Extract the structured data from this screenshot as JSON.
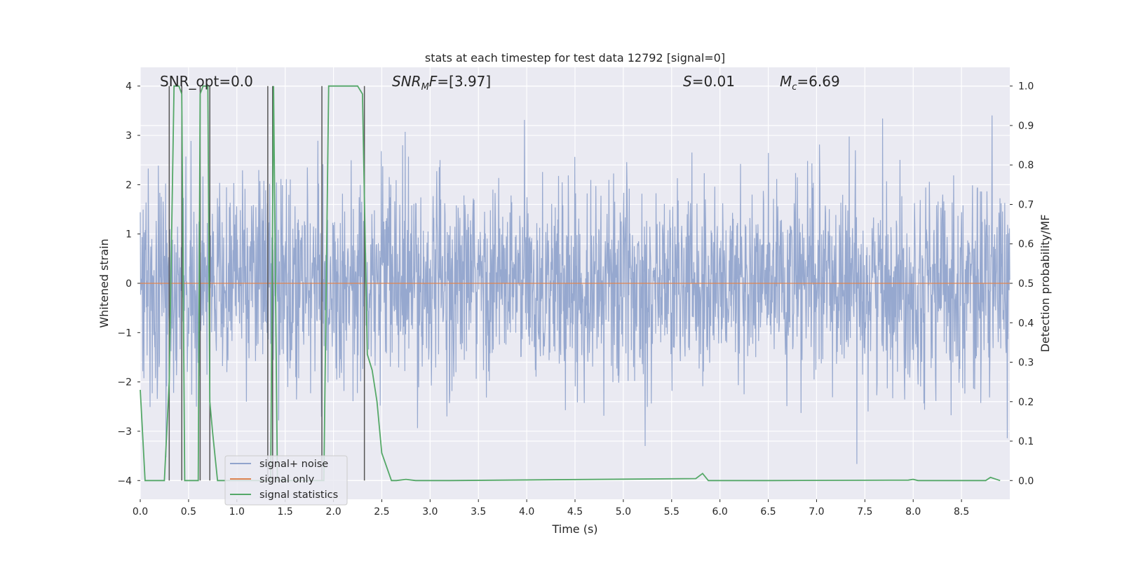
{
  "chart_data": {
    "type": "line",
    "title": "stats at each timestep for test data 12792 [signal=0]",
    "xlabel": "Time (s)",
    "ylabel": "Whitened strain",
    "y2label": "Detection probability/MF",
    "xlim": [
      0.0,
      9.0
    ],
    "ylim": [
      -4.38,
      4.38
    ],
    "y2lim": [
      -0.0475,
      1.0475
    ],
    "grid": true,
    "xticks": [
      0.0,
      0.5,
      1.0,
      1.5,
      2.0,
      2.5,
      3.0,
      3.5,
      4.0,
      4.5,
      5.0,
      5.5,
      6.0,
      6.5,
      7.0,
      7.5,
      8.0,
      8.5
    ],
    "xtick_labels": [
      "0.0",
      "0.5",
      "1.0",
      "1.5",
      "2.0",
      "2.5",
      "3.0",
      "3.5",
      "4.0",
      "4.5",
      "5.0",
      "5.5",
      "6.0",
      "6.5",
      "7.0",
      "7.5",
      "8.0",
      "8.5"
    ],
    "yticks": [
      4,
      3,
      2,
      1,
      0,
      -1,
      -2,
      -3,
      -4
    ],
    "ytick_labels": [
      "4",
      "3",
      "2",
      "1",
      "0",
      "−1",
      "−2",
      "−3",
      "−4"
    ],
    "y2ticks": [
      1.0,
      0.9,
      0.8,
      0.7,
      0.6,
      0.5,
      0.4,
      0.3,
      0.2,
      0.1,
      0.0
    ],
    "y2tick_labels": [
      "1.0",
      "0.9",
      "0.8",
      "0.7",
      "0.6",
      "0.5",
      "0.4",
      "0.3",
      "0.2",
      "0.1",
      "0.0"
    ],
    "annotations": {
      "snr_opt": "SNR_opt=0.0",
      "snr_mf": "=[3.97]",
      "s_value": "=0.01",
      "mc_value": "=6.69"
    },
    "series": [
      {
        "name": "signal+ noise",
        "color": "#91a4cc",
        "axis": "left",
        "description": "whitened strain noise, approx std 1.0, peaks within ±3.8",
        "noise_std": 1.0,
        "noise_range": [
          -3.8,
          3.8
        ]
      },
      {
        "name": "signal only",
        "color": "#dd8452",
        "axis": "left",
        "x": [
          0.0,
          9.0
        ],
        "values": [
          0.0,
          0.0
        ]
      },
      {
        "name": "signal statistics",
        "color": "#55a868",
        "axis": "right",
        "x": [
          0.0,
          0.05,
          0.25,
          0.3,
          0.35,
          0.4,
          0.43,
          0.46,
          0.5,
          0.55,
          0.6,
          0.62,
          0.65,
          0.7,
          0.72,
          0.75,
          0.8,
          0.85,
          1.3,
          1.35,
          1.38,
          1.42,
          1.45,
          1.85,
          1.9,
          1.95,
          2.25,
          2.3,
          2.35,
          2.4,
          2.45,
          2.5,
          2.6,
          2.65,
          2.75,
          2.85,
          3.2,
          5.75,
          5.82,
          5.88,
          5.95,
          6.5,
          7.95,
          8.0,
          8.05,
          8.75,
          8.8,
          8.9
        ],
        "values": [
          0.23,
          0.0,
          0.0,
          0.25,
          1.0,
          1.0,
          0.98,
          0.0,
          0.0,
          0.0,
          0.0,
          0.98,
          1.0,
          1.0,
          0.2,
          0.12,
          0.0,
          0.0,
          0.0,
          0.0,
          1.0,
          0.0,
          0.0,
          0.0,
          0.0,
          1.0,
          1.0,
          0.98,
          0.32,
          0.28,
          0.2,
          0.07,
          0.0,
          0.0,
          0.003,
          0.0,
          0.0,
          0.005,
          0.018,
          0.0,
          0.0,
          0.0,
          0.001,
          0.003,
          0.0,
          0.0,
          0.008,
          0.0
        ]
      },
      {
        "name": "detection markers",
        "color": "#555555",
        "axis": "right",
        "type": "vlines",
        "x": [
          0.3,
          0.43,
          0.62,
          0.72,
          1.32,
          1.37,
          1.88,
          2.32
        ],
        "values": [
          1.0,
          1.0,
          1.0,
          1.0,
          1.0,
          1.0,
          1.0,
          1.0
        ]
      }
    ],
    "legend": {
      "placement": "lower-left",
      "entries": [
        "signal+ noise",
        "signal only",
        "signal statistics"
      ]
    }
  }
}
